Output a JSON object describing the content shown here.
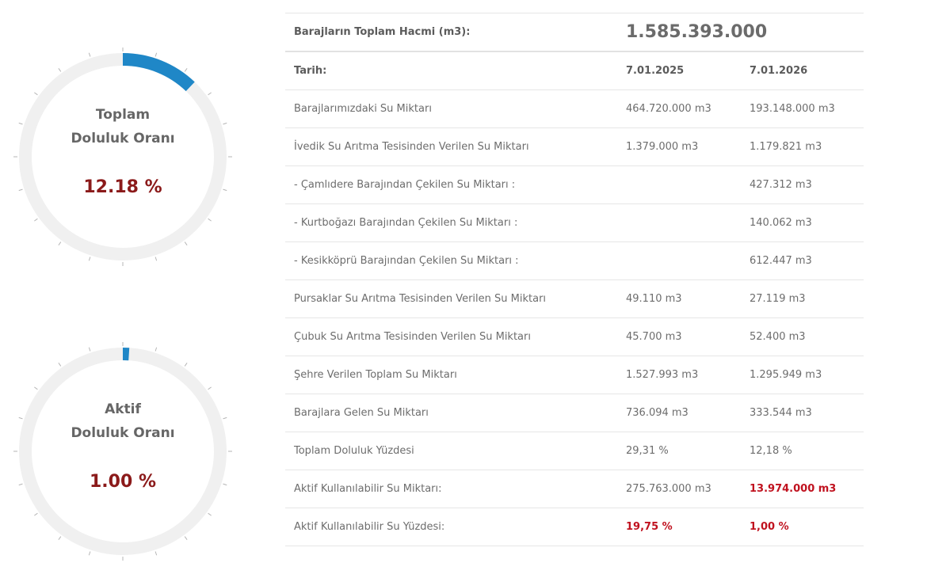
{
  "gauges": [
    {
      "label_line1": "Toplam",
      "label_line2": "Doluluk Oranı",
      "value_text": "12.18 %",
      "percent": 12.18
    },
    {
      "label_line1": "Aktif",
      "label_line2": "Doluluk Oranı",
      "value_text": "1.00 %",
      "percent": 1.0
    }
  ],
  "colors": {
    "arc_fill": "#1f87c7",
    "arc_track": "#f0f0f0",
    "ticks": "#b5b5b5",
    "value_text": "#8b1a1a",
    "highlight_red": "#c0121f"
  },
  "table": {
    "total_volume_label": "Barajların Toplam Hacmi (m3):",
    "total_volume_value": "1.585.393.000",
    "date_label": "Tarih:",
    "date_1": "7.01.2025",
    "date_2": "7.01.2026",
    "rows": [
      {
        "label": "Barajlarımızdaki Su Miktarı",
        "v1": "464.720.000 m3",
        "v2": "193.148.000 m3"
      },
      {
        "label": "İvedik Su Arıtma Tesisinden Verilen Su Miktarı",
        "v1": "1.379.000 m3",
        "v2": "1.179.821 m3"
      },
      {
        "label": "- Çamlıdere Barajından Çekilen Su Miktarı :",
        "v1": "",
        "v2": "427.312 m3"
      },
      {
        "label": "- Kurtboğazı Barajından Çekilen Su Miktarı :",
        "v1": "",
        "v2": "140.062 m3"
      },
      {
        "label": "- Kesikköprü Barajından Çekilen Su Miktarı :",
        "v1": "",
        "v2": "612.447 m3"
      },
      {
        "label": "Pursaklar Su Arıtma Tesisinden Verilen Su Miktarı",
        "v1": "49.110 m3",
        "v2": "27.119 m3"
      },
      {
        "label": "Çubuk Su Arıtma Tesisinden Verilen Su Miktarı",
        "v1": "45.700 m3",
        "v2": "52.400 m3"
      },
      {
        "label": "Şehre Verilen Toplam Su Miktarı",
        "v1": "1.527.993 m3",
        "v2": "1.295.949 m3"
      },
      {
        "label": "Barajlara Gelen Su Miktarı",
        "v1": "736.094 m3",
        "v2": "333.544 m3"
      },
      {
        "label": "Toplam Doluluk Yüzdesi",
        "v1": "29,31 %",
        "v2": "12,18 %"
      },
      {
        "label": "Aktif Kullanılabilir Su Miktarı:",
        "v1": "275.763.000 m3",
        "v2": "13.974.000 m3"
      },
      {
        "label": "Aktif Kullanılabilir Su Yüzdesi:",
        "v1": "19,75 %",
        "v2": "1,00 %"
      }
    ]
  }
}
